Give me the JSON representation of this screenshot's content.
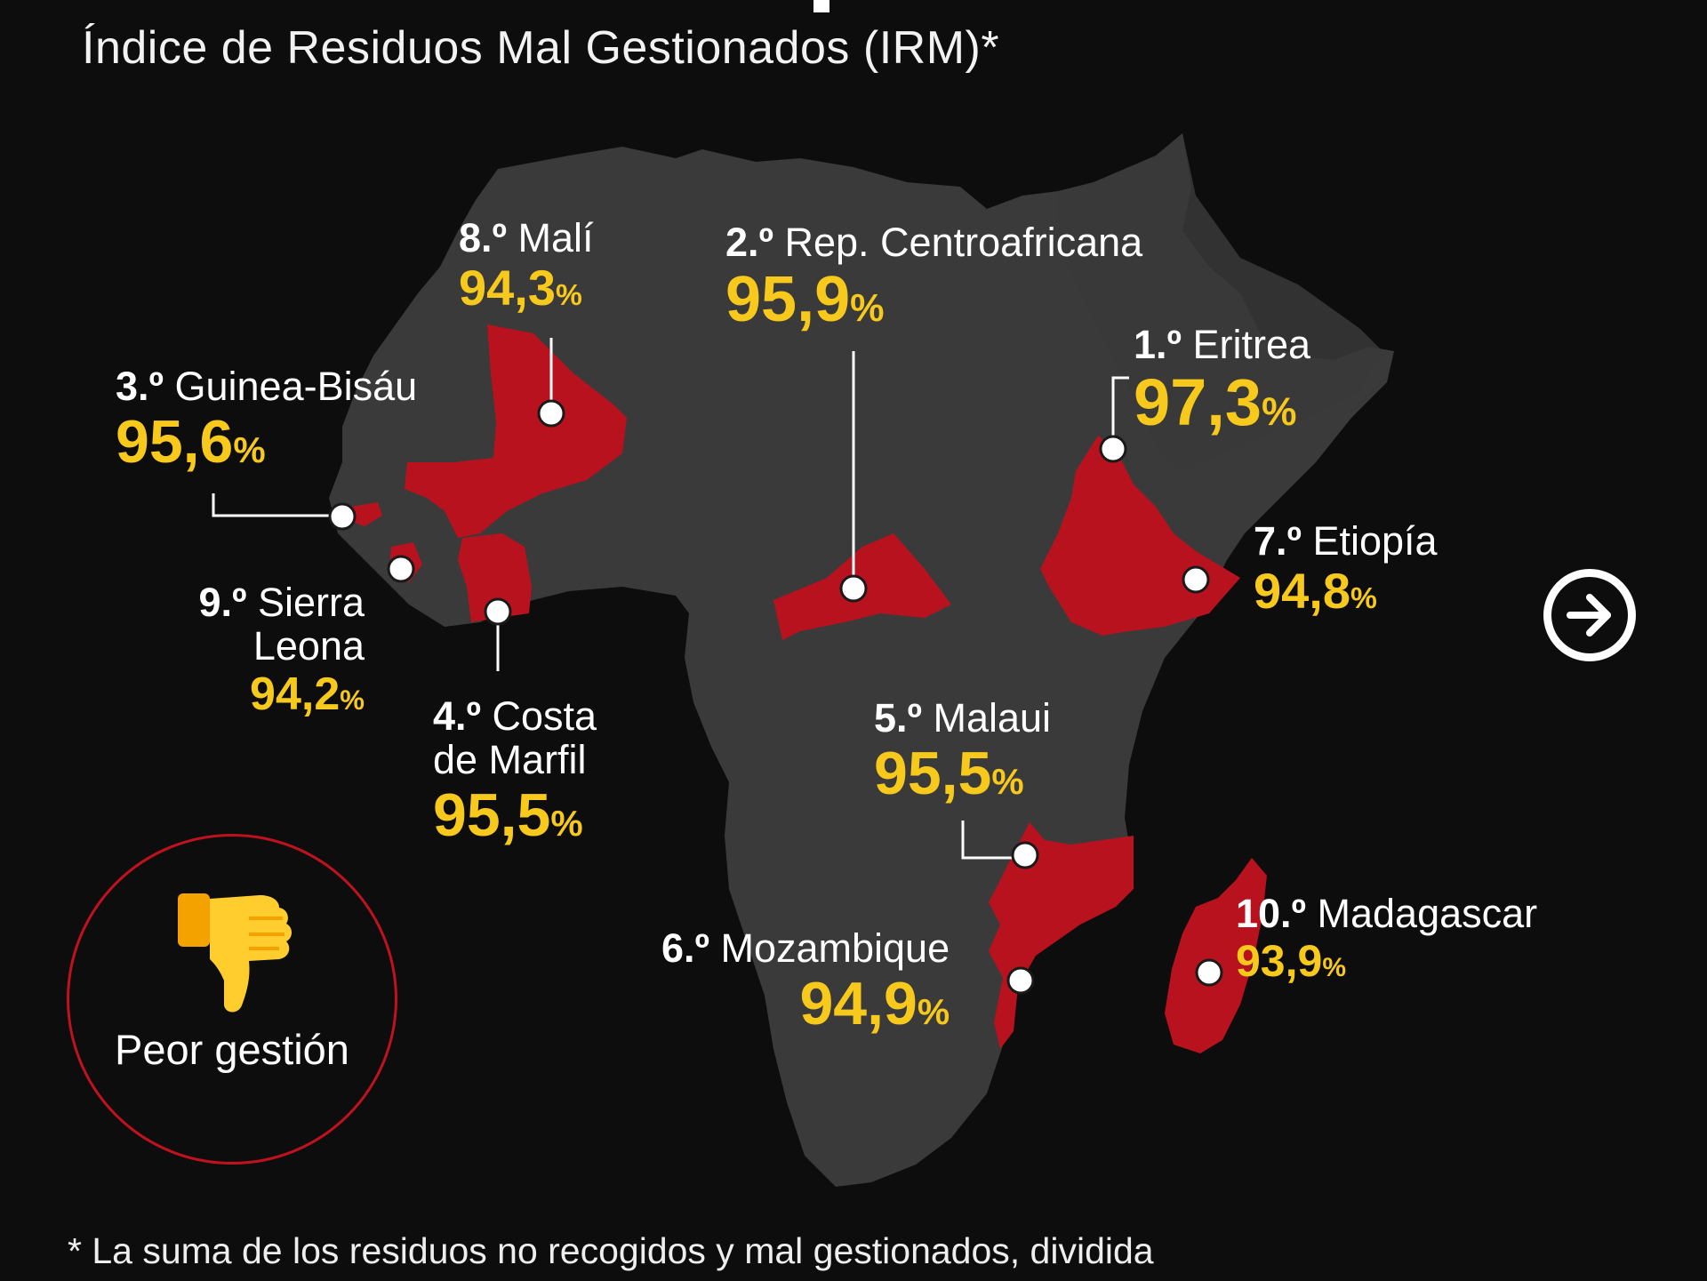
{
  "subtitle": "Índice de Residuos Mal Gestionados (IRM)*",
  "colors": {
    "background": "#0d0d0d",
    "land": "#3a3a3a",
    "highlight": "#b8121f",
    "accent_yellow": "#f7c91c",
    "text": "#ffffff"
  },
  "countries": [
    {
      "rank": "1.º",
      "name": "Eritrea",
      "value": "97,3",
      "unit": "%"
    },
    {
      "rank": "2.º",
      "name": "Rep. Centroafricana",
      "value": "95,9",
      "unit": "%"
    },
    {
      "rank": "3.º",
      "name": "Guinea-Bisáu",
      "value": "95,6",
      "unit": "%"
    },
    {
      "rank": "4.º",
      "name_line1": "Costa",
      "name_line2": "de Marfil",
      "value": "95,5",
      "unit": "%"
    },
    {
      "rank": "5.º",
      "name": "Malaui",
      "value": "95,5",
      "unit": "%"
    },
    {
      "rank": "6.º",
      "name": "Mozambique",
      "value": "94,9",
      "unit": "%"
    },
    {
      "rank": "7.º",
      "name": "Etiopía",
      "value": "94,8",
      "unit": "%"
    },
    {
      "rank": "8.º",
      "name": "Malí",
      "value": "94,3",
      "unit": "%"
    },
    {
      "rank": "9.º",
      "name_line1": "Sierra",
      "name_line2": "Leona",
      "value": "94,2",
      "unit": "%"
    },
    {
      "rank": "10.º",
      "name": "Madagascar",
      "value": "93,9",
      "unit": "%"
    }
  ],
  "badge": {
    "label": "Peor gestión",
    "icon": "thumbs-down-icon"
  },
  "next_button": {
    "icon": "arrow-right-circle-icon"
  },
  "footnote": "* La suma de los residuos no recogidos y mal gestionados, dividida"
}
